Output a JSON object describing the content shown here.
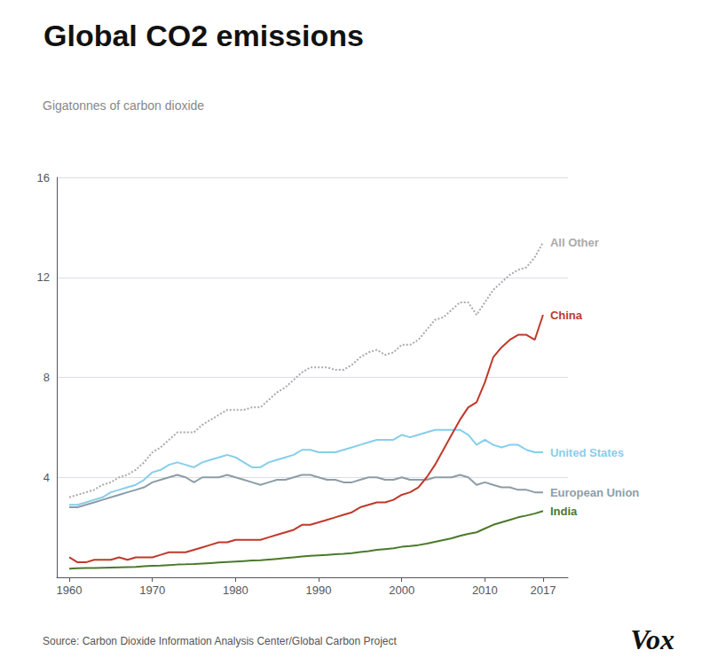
{
  "chart_data": {
    "type": "line",
    "title": "Global CO2 emissions",
    "ylabel": "Gigatonnes of carbon dioxide",
    "annotations": [
      "Source: Carbon Dioxide Information Analysis Center/Global Carbon Project",
      "Vox"
    ],
    "x": [
      1960,
      1961,
      1962,
      1963,
      1964,
      1965,
      1966,
      1967,
      1968,
      1969,
      1970,
      1971,
      1972,
      1973,
      1974,
      1975,
      1976,
      1977,
      1978,
      1979,
      1980,
      1981,
      1982,
      1983,
      1984,
      1985,
      1986,
      1987,
      1988,
      1989,
      1990,
      1991,
      1992,
      1993,
      1994,
      1995,
      1996,
      1997,
      1998,
      1999,
      2000,
      2001,
      2002,
      2003,
      2004,
      2005,
      2006,
      2007,
      2008,
      2009,
      2010,
      2011,
      2012,
      2013,
      2014,
      2015,
      2016,
      2017
    ],
    "series": [
      {
        "name": "All Other",
        "color": "#AAAAAA",
        "line_style": "dotted",
        "values": [
          3.2,
          3.3,
          3.4,
          3.5,
          3.7,
          3.8,
          4.0,
          4.1,
          4.3,
          4.6,
          5.0,
          5.2,
          5.5,
          5.8,
          5.8,
          5.8,
          6.1,
          6.3,
          6.5,
          6.7,
          6.7,
          6.7,
          6.8,
          6.8,
          7.1,
          7.4,
          7.6,
          7.9,
          8.2,
          8.4,
          8.4,
          8.4,
          8.3,
          8.3,
          8.5,
          8.8,
          9.0,
          9.1,
          8.9,
          9.0,
          9.3,
          9.3,
          9.5,
          9.9,
          10.3,
          10.4,
          10.7,
          11.0,
          11.0,
          10.5,
          11.0,
          11.5,
          11.8,
          12.1,
          12.3,
          12.4,
          12.8,
          13.4
        ]
      },
      {
        "name": "United States",
        "color": "#87CEEB",
        "line_style": "solid",
        "values": [
          2.9,
          2.9,
          3.0,
          3.1,
          3.2,
          3.4,
          3.5,
          3.6,
          3.7,
          3.9,
          4.2,
          4.3,
          4.5,
          4.6,
          4.5,
          4.4,
          4.6,
          4.7,
          4.8,
          4.9,
          4.8,
          4.6,
          4.4,
          4.4,
          4.6,
          4.7,
          4.8,
          4.9,
          5.1,
          5.1,
          5.0,
          5.0,
          5.0,
          5.1,
          5.2,
          5.3,
          5.4,
          5.5,
          5.5,
          5.5,
          5.7,
          5.6,
          5.7,
          5.8,
          5.9,
          5.9,
          5.9,
          5.9,
          5.7,
          5.3,
          5.5,
          5.3,
          5.2,
          5.3,
          5.3,
          5.1,
          5.0,
          5.0
        ]
      },
      {
        "name": "European Union",
        "color": "#8C9DA8",
        "line_style": "solid",
        "values": [
          2.8,
          2.8,
          2.9,
          3.0,
          3.1,
          3.2,
          3.3,
          3.4,
          3.5,
          3.6,
          3.8,
          3.9,
          4.0,
          4.1,
          4.0,
          3.8,
          4.0,
          4.0,
          4.0,
          4.1,
          4.0,
          3.9,
          3.8,
          3.7,
          3.8,
          3.9,
          3.9,
          4.0,
          4.1,
          4.1,
          4.0,
          3.9,
          3.9,
          3.8,
          3.8,
          3.9,
          4.0,
          4.0,
          3.9,
          3.9,
          4.0,
          3.9,
          3.9,
          3.9,
          4.0,
          4.0,
          4.0,
          4.1,
          4.0,
          3.7,
          3.8,
          3.7,
          3.6,
          3.6,
          3.5,
          3.5,
          3.4,
          3.4
        ]
      },
      {
        "name": "China",
        "color": "#C0392B",
        "line_style": "solid",
        "values": [
          0.8,
          0.6,
          0.6,
          0.7,
          0.7,
          0.7,
          0.8,
          0.7,
          0.8,
          0.8,
          0.8,
          0.9,
          1.0,
          1.0,
          1.0,
          1.1,
          1.2,
          1.3,
          1.4,
          1.4,
          1.5,
          1.5,
          1.5,
          1.5,
          1.6,
          1.7,
          1.8,
          1.9,
          2.1,
          2.1,
          2.2,
          2.3,
          2.4,
          2.5,
          2.6,
          2.8,
          2.9,
          3.0,
          3.0,
          3.1,
          3.3,
          3.4,
          3.6,
          4.0,
          4.5,
          5.1,
          5.7,
          6.3,
          6.8,
          7.0,
          7.8,
          8.8,
          9.2,
          9.5,
          9.7,
          9.7,
          9.5,
          10.5
        ]
      },
      {
        "name": "India",
        "color": "#4A7A2A",
        "line_style": "solid",
        "values": [
          0.35,
          0.36,
          0.37,
          0.37,
          0.38,
          0.39,
          0.4,
          0.41,
          0.42,
          0.44,
          0.46,
          0.47,
          0.49,
          0.51,
          0.52,
          0.53,
          0.55,
          0.57,
          0.59,
          0.61,
          0.63,
          0.65,
          0.67,
          0.68,
          0.71,
          0.74,
          0.77,
          0.8,
          0.83,
          0.86,
          0.88,
          0.9,
          0.92,
          0.94,
          0.97,
          1.01,
          1.05,
          1.1,
          1.13,
          1.16,
          1.22,
          1.25,
          1.29,
          1.35,
          1.42,
          1.49,
          1.56,
          1.66,
          1.74,
          1.8,
          1.95,
          2.1,
          2.2,
          2.3,
          2.4,
          2.47,
          2.55,
          2.65
        ]
      }
    ],
    "xlim": [
      1958.5,
      2020
    ],
    "xticks": [
      1960,
      1970,
      1980,
      1990,
      2000,
      2010,
      2017
    ],
    "ylim": [
      0,
      16
    ],
    "yticks": [
      4,
      8,
      12,
      16
    ],
    "grid": true
  }
}
